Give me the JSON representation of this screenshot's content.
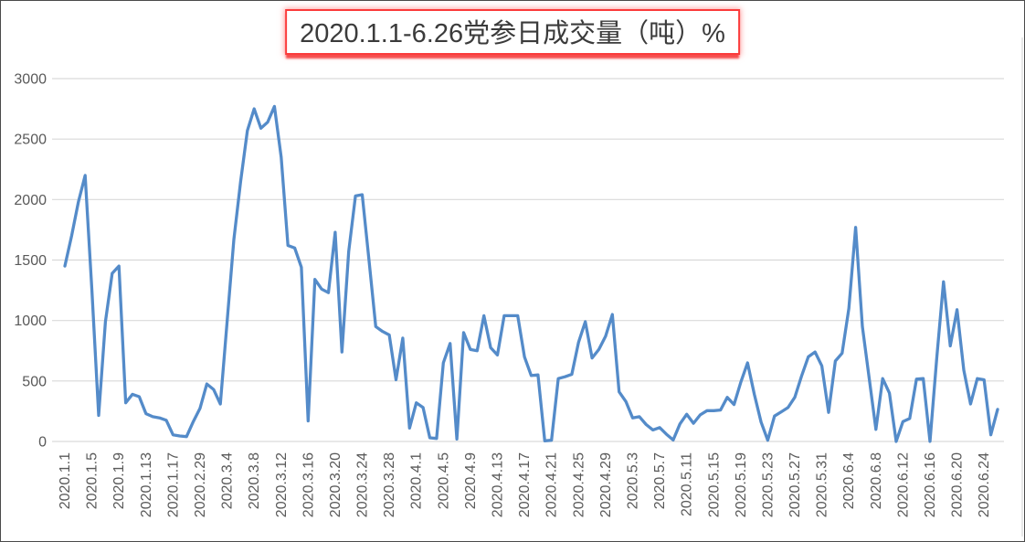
{
  "title": {
    "text": "2020.1.1-6.26党参日成交量（吨）%",
    "text_color": "#3b3b3b",
    "border_color": "#fb3b3b",
    "background": "#ffffff"
  },
  "chart_data": {
    "type": "line",
    "title": "2020.1.1-6.26党参日成交量（吨）%",
    "ylabel": "",
    "xlabel": "",
    "ylim": [
      0,
      3000
    ],
    "y_ticks": [
      0,
      500,
      1000,
      1500,
      2000,
      2500,
      3000
    ],
    "x_tick_every": 4,
    "grid": "horizontal",
    "legend": "none",
    "line_color": "#548BC9",
    "gridline_color": "#d9d9d9",
    "axis_label_color": "#595959",
    "x": [
      "2020.1.1",
      "2020.1.2",
      "2020.1.3",
      "2020.1.4",
      "2020.1.5",
      "2020.1.6",
      "2020.1.7",
      "2020.1.8",
      "2020.1.9",
      "2020.1.10",
      "2020.1.11",
      "2020.1.12",
      "2020.1.13",
      "2020.1.14",
      "2020.1.15",
      "2020.1.16",
      "2020.1.17",
      "2020.1.18",
      "2020.1.19",
      "2020.1.20",
      "2020.2.29",
      "2020.3.1",
      "2020.3.2",
      "2020.3.3",
      "2020.3.4",
      "2020.3.5",
      "2020.3.6",
      "2020.3.7",
      "2020.3.8",
      "2020.3.9",
      "2020.3.10",
      "2020.3.11",
      "2020.3.12",
      "2020.3.13",
      "2020.3.14",
      "2020.3.15",
      "2020.3.16",
      "2020.3.17",
      "2020.3.18",
      "2020.3.19",
      "2020.3.20",
      "2020.3.21",
      "2020.3.22",
      "2020.3.23",
      "2020.3.24",
      "2020.3.25",
      "2020.3.26",
      "2020.3.27",
      "2020.3.28",
      "2020.3.29",
      "2020.3.30",
      "2020.3.31",
      "2020.4.1",
      "2020.4.2",
      "2020.4.3",
      "2020.4.4",
      "2020.4.5",
      "2020.4.6",
      "2020.4.7",
      "2020.4.8",
      "2020.4.9",
      "2020.4.10",
      "2020.4.11",
      "2020.4.12",
      "2020.4.13",
      "2020.4.14",
      "2020.4.15",
      "2020.4.16",
      "2020.4.17",
      "2020.4.18",
      "2020.4.19",
      "2020.4.20",
      "2020.4.21",
      "2020.4.22",
      "2020.4.23",
      "2020.4.24",
      "2020.4.25",
      "2020.4.26",
      "2020.4.27",
      "2020.4.28",
      "2020.4.29",
      "2020.4.30",
      "2020.5.1",
      "2020.5.2",
      "2020.5.3",
      "2020.5.4",
      "2020.5.5",
      "2020.5.6",
      "2020.5.7",
      "2020.5.8",
      "2020.5.9",
      "2020.5.10",
      "2020.5.11",
      "2020.5.12",
      "2020.5.13",
      "2020.5.14",
      "2020.5.15",
      "2020.5.16",
      "2020.5.17",
      "2020.5.18",
      "2020.5.19",
      "2020.5.20",
      "2020.5.21",
      "2020.5.22",
      "2020.5.23",
      "2020.5.24",
      "2020.5.25",
      "2020.5.26",
      "2020.5.27",
      "2020.5.28",
      "2020.5.29",
      "2020.5.30",
      "2020.5.31",
      "2020.6.1",
      "2020.6.2",
      "2020.6.3",
      "2020.6.4",
      "2020.6.5",
      "2020.6.6",
      "2020.6.7",
      "2020.6.8",
      "2020.6.9",
      "2020.6.10",
      "2020.6.11",
      "2020.6.12",
      "2020.6.13",
      "2020.6.14",
      "2020.6.15",
      "2020.6.16",
      "2020.6.17",
      "2020.6.18",
      "2020.6.19",
      "2020.6.20",
      "2020.6.21",
      "2020.6.22",
      "2020.6.23",
      "2020.6.24",
      "2020.6.25",
      "2020.6.26"
    ],
    "values": [
      1450,
      1700,
      1980,
      2200,
      1250,
      215,
      990,
      1390,
      1450,
      320,
      390,
      370,
      230,
      205,
      195,
      175,
      55,
      45,
      40,
      165,
      275,
      475,
      430,
      310,
      990,
      1670,
      2150,
      2570,
      2750,
      2590,
      2640,
      2770,
      2350,
      1620,
      1600,
      1440,
      170,
      1340,
      1260,
      1230,
      1730,
      740,
      1570,
      2030,
      2040,
      1500,
      950,
      910,
      880,
      510,
      855,
      110,
      320,
      280,
      30,
      25,
      650,
      810,
      20,
      900,
      760,
      750,
      1040,
      775,
      715,
      1040,
      1040,
      1040,
      700,
      545,
      550,
      5,
      10,
      520,
      535,
      555,
      820,
      990,
      690,
      760,
      870,
      1050,
      410,
      330,
      195,
      205,
      140,
      95,
      115,
      60,
      12,
      145,
      225,
      150,
      220,
      255,
      255,
      260,
      365,
      305,
      490,
      650,
      390,
      160,
      10,
      210,
      245,
      280,
      365,
      540,
      700,
      740,
      625,
      240,
      665,
      730,
      1100,
      1770,
      950,
      525,
      100,
      520,
      400,
      0,
      165,
      190,
      515,
      520,
      0,
      690,
      1320,
      790,
      1090,
      590,
      310,
      520,
      510,
      55,
      265
    ]
  }
}
